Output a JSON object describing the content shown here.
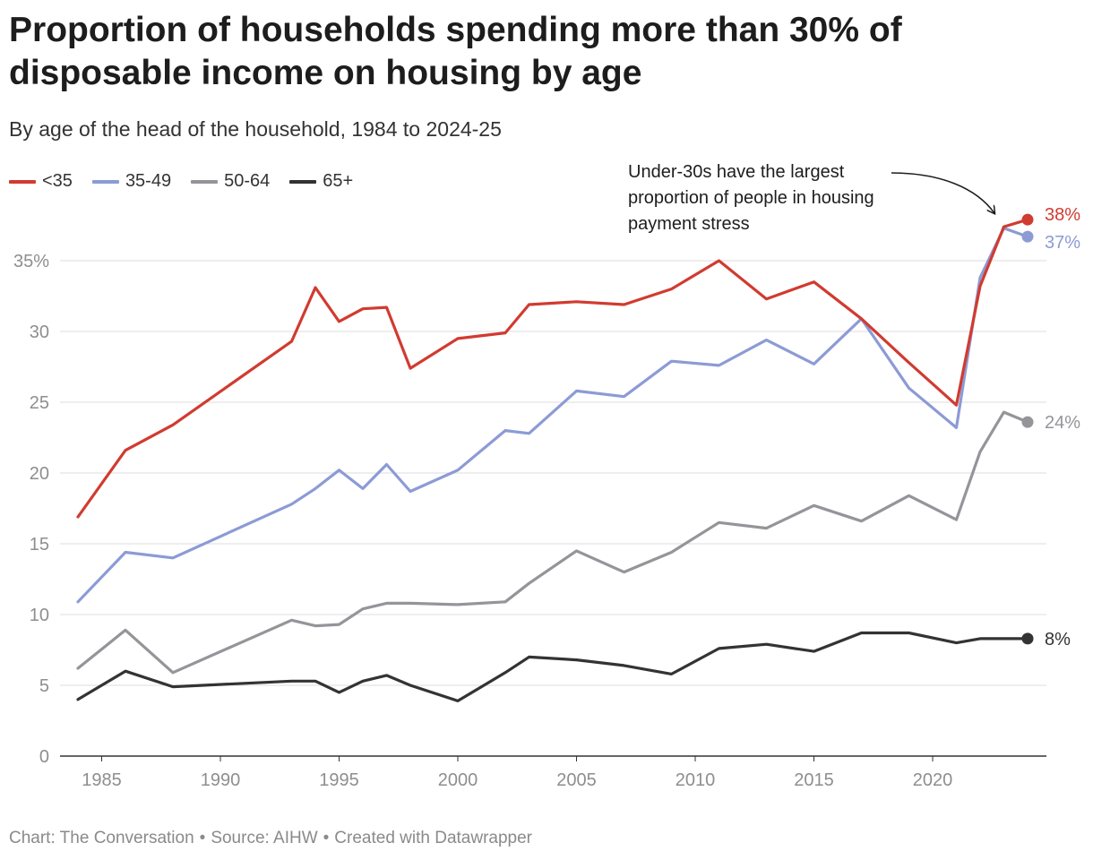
{
  "title": "Proportion of households spending more than 30% of disposable income on housing by age",
  "subtitle": "By age of the head of the household, 1984 to 2024-25",
  "footer": {
    "chart": "Chart: The Conversation",
    "source": "Source: AIHW",
    "created": "Created with Datawrapper"
  },
  "annotation": "Under-30s have the largest proportion of people in housing payment stress",
  "chart_data": {
    "type": "line",
    "title": "Proportion of households spending more than 30% of disposable income on housing by age",
    "subtitle": "By age of the head of the household, 1984 to 2024-25",
    "xlabel": "",
    "ylabel": "",
    "xlim": [
      1983.8,
      2024.2
    ],
    "ylim": [
      0,
      38
    ],
    "x_ticks": [
      "1985",
      "1990",
      "1995",
      "2000",
      "2005",
      "2010",
      "2015",
      "2020"
    ],
    "y_ticks": [
      {
        "value": 0,
        "label": "0"
      },
      {
        "value": 5,
        "label": "5"
      },
      {
        "value": 10,
        "label": "10"
      },
      {
        "value": 15,
        "label": "15"
      },
      {
        "value": 20,
        "label": "20"
      },
      {
        "value": 25,
        "label": "25"
      },
      {
        "value": 30,
        "label": "30"
      },
      {
        "value": 35,
        "label": "35%"
      }
    ],
    "grid": true,
    "legend_position": "top-left",
    "series": [
      {
        "name": "<35",
        "color": "#d13b30",
        "end_label": "38%",
        "points": [
          [
            1984,
            16.9
          ],
          [
            1986,
            21.6
          ],
          [
            1988,
            23.4
          ],
          [
            1993,
            29.3
          ],
          [
            1994,
            33.1
          ],
          [
            1995,
            30.7
          ],
          [
            1996,
            31.6
          ],
          [
            1997,
            31.7
          ],
          [
            1998,
            27.4
          ],
          [
            2000,
            29.5
          ],
          [
            2002,
            29.9
          ],
          [
            2003,
            31.9
          ],
          [
            2005,
            32.1
          ],
          [
            2007,
            31.9
          ],
          [
            2009,
            33.0
          ],
          [
            2011,
            35.0
          ],
          [
            2013,
            32.3
          ],
          [
            2015,
            33.5
          ],
          [
            2017,
            30.9
          ],
          [
            2019,
            27.8
          ],
          [
            2021,
            24.8
          ],
          [
            2022,
            33.2
          ],
          [
            2023,
            37.4
          ],
          [
            2024,
            37.9
          ]
        ]
      },
      {
        "name": "35-49",
        "color": "#8c9bd5",
        "end_label": "37%",
        "points": [
          [
            1984,
            10.9
          ],
          [
            1986,
            14.4
          ],
          [
            1988,
            14.0
          ],
          [
            1993,
            17.8
          ],
          [
            1994,
            18.9
          ],
          [
            1995,
            20.2
          ],
          [
            1996,
            18.9
          ],
          [
            1997,
            20.6
          ],
          [
            1998,
            18.7
          ],
          [
            2000,
            20.2
          ],
          [
            2002,
            23.0
          ],
          [
            2003,
            22.8
          ],
          [
            2005,
            25.8
          ],
          [
            2007,
            25.4
          ],
          [
            2009,
            27.9
          ],
          [
            2011,
            27.6
          ],
          [
            2013,
            29.4
          ],
          [
            2015,
            27.7
          ],
          [
            2017,
            30.9
          ],
          [
            2019,
            26.0
          ],
          [
            2021,
            23.2
          ],
          [
            2022,
            33.8
          ],
          [
            2023,
            37.3
          ],
          [
            2024,
            36.7
          ]
        ]
      },
      {
        "name": "50-64",
        "color": "#959499",
        "end_label": "24%",
        "points": [
          [
            1984,
            6.2
          ],
          [
            1986,
            8.9
          ],
          [
            1988,
            5.9
          ],
          [
            1993,
            9.6
          ],
          [
            1994,
            9.2
          ],
          [
            1995,
            9.3
          ],
          [
            1996,
            10.4
          ],
          [
            1997,
            10.8
          ],
          [
            1998,
            10.8
          ],
          [
            2000,
            10.7
          ],
          [
            2002,
            10.9
          ],
          [
            2003,
            12.2
          ],
          [
            2005,
            14.5
          ],
          [
            2007,
            13.0
          ],
          [
            2009,
            14.4
          ],
          [
            2011,
            16.5
          ],
          [
            2013,
            16.1
          ],
          [
            2015,
            17.7
          ],
          [
            2017,
            16.6
          ],
          [
            2019,
            18.4
          ],
          [
            2021,
            16.7
          ],
          [
            2022,
            21.5
          ],
          [
            2023,
            24.3
          ],
          [
            2024,
            23.6
          ]
        ]
      },
      {
        "name": "65+",
        "color": "#333333",
        "end_label": "8%",
        "points": [
          [
            1984,
            4.0
          ],
          [
            1986,
            6.0
          ],
          [
            1988,
            4.9
          ],
          [
            1993,
            5.3
          ],
          [
            1994,
            5.3
          ],
          [
            1995,
            4.5
          ],
          [
            1996,
            5.3
          ],
          [
            1997,
            5.7
          ],
          [
            1998,
            5.0
          ],
          [
            2000,
            3.9
          ],
          [
            2002,
            5.9
          ],
          [
            2003,
            7.0
          ],
          [
            2005,
            6.8
          ],
          [
            2007,
            6.4
          ],
          [
            2009,
            5.8
          ],
          [
            2011,
            7.6
          ],
          [
            2013,
            7.9
          ],
          [
            2015,
            7.4
          ],
          [
            2017,
            8.7
          ],
          [
            2019,
            8.7
          ],
          [
            2021,
            8.0
          ],
          [
            2022,
            8.3
          ],
          [
            2023,
            8.3
          ],
          [
            2024,
            8.3
          ]
        ]
      }
    ]
  }
}
